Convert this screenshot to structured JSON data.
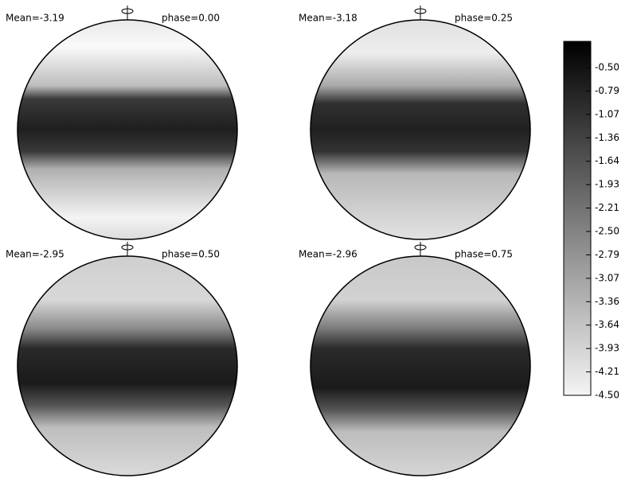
{
  "panels": [
    {
      "mean": "Mean=-3.19",
      "phase": "phase=0.00"
    },
    {
      "mean": "Mean=-3.18",
      "phase": "phase=0.25"
    },
    {
      "mean": "Mean=-2.95",
      "phase": "phase=0.50"
    },
    {
      "mean": "Mean=-2.96",
      "phase": "phase=0.75"
    }
  ],
  "colorbar": {
    "ticks": [
      "-0.50",
      "-0.79",
      "-1.07",
      "-1.36",
      "-1.64",
      "-1.93",
      "-2.21",
      "-2.50",
      "-2.79",
      "-3.07",
      "-3.36",
      "-3.64",
      "-3.93",
      "-4.21",
      "-4.50"
    ]
  }
}
